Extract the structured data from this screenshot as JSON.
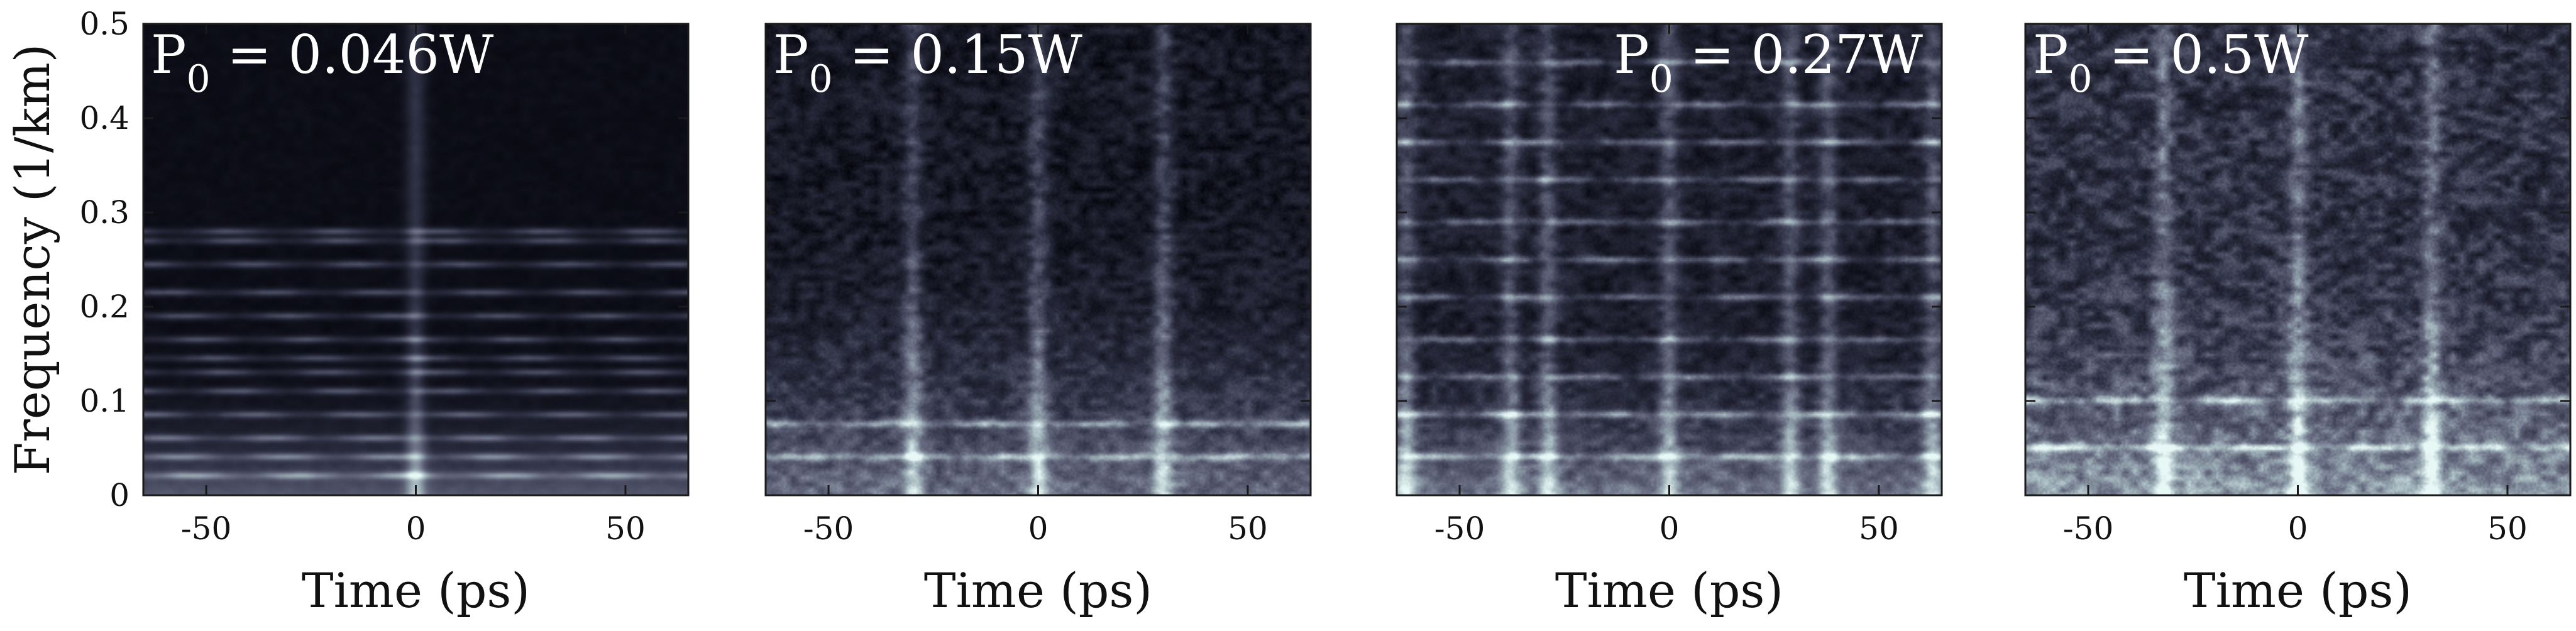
{
  "chart_data": [
    {
      "type": "heatmap",
      "annotation": {
        "main": "P",
        "sub": "0",
        "rest": " = 0.046W",
        "placement": "top-left"
      },
      "xlabel": "Time (ps)",
      "ylabel": "Frequency (1/km)",
      "xlim": [
        -65,
        65
      ],
      "ylim": [
        0,
        0.5
      ],
      "xticks": [
        "-50",
        "0",
        "50"
      ],
      "xtick_values": [
        -50,
        0,
        50
      ],
      "yticks": [
        "0",
        "0.1",
        "0.2",
        "0.3",
        "0.4",
        "0.5"
      ],
      "ytick_values": [
        0,
        0.1,
        0.2,
        0.3,
        0.4,
        0.5
      ],
      "pattern": {
        "bands": [
          0.02,
          0.04,
          0.06,
          0.085,
          0.11,
          0.13,
          0.145,
          0.165,
          0.19,
          0.215,
          0.245,
          0.27,
          0.28
        ],
        "stripes": [
          0
        ],
        "low_fill_top": 0.15,
        "noise": 0.04,
        "base": 0.06
      }
    },
    {
      "type": "heatmap",
      "annotation": {
        "main": "P",
        "sub": "0",
        "rest": " = 0.15W",
        "placement": "top-left"
      },
      "xlabel": "Time (ps)",
      "ylabel": "",
      "xlim": [
        -65,
        65
      ],
      "ylim": [
        0,
        0.5
      ],
      "xticks": [
        "-50",
        "0",
        "50"
      ],
      "xtick_values": [
        -50,
        0,
        50
      ],
      "yticks": [],
      "ytick_values": [
        0,
        0.1,
        0.2,
        0.3,
        0.4,
        0.5
      ],
      "pattern": {
        "bands": [
          0.04,
          0.075
        ],
        "stripes": [
          0,
          -30,
          30
        ],
        "low_fill_top": 0.32,
        "noise": 0.22,
        "base": 0.14
      }
    },
    {
      "type": "heatmap",
      "annotation": {
        "main": "P",
        "sub": "0",
        "rest": " = 0.27W",
        "placement": "top-right"
      },
      "xlabel": "Time (ps)",
      "ylabel": "",
      "xlim": [
        -65,
        65
      ],
      "ylim": [
        0,
        0.5
      ],
      "xticks": [
        "-50",
        "0",
        "50"
      ],
      "xtick_values": [
        -50,
        0,
        50
      ],
      "yticks": [],
      "ytick_values": [
        0,
        0.1,
        0.2,
        0.3,
        0.4,
        0.5
      ],
      "pattern": {
        "bands": [
          0.04,
          0.085,
          0.125,
          0.165,
          0.21,
          0.25,
          0.29,
          0.335,
          0.375,
          0.415,
          0.46
        ],
        "stripes": [
          -63,
          -38,
          -29,
          0,
          29,
          38,
          63
        ],
        "low_fill_top": 0.2,
        "noise": 0.2,
        "base": 0.18
      }
    },
    {
      "type": "heatmap",
      "annotation": {
        "main": "P",
        "sub": "0",
        "rest": " = 0.5W",
        "placement": "top-left"
      },
      "xlabel": "Time (ps)",
      "ylabel": "",
      "xlim": [
        -65,
        65
      ],
      "ylim": [
        0,
        0.5
      ],
      "xticks": [
        "-50",
        "0",
        "50"
      ],
      "xtick_values": [
        -50,
        0,
        50
      ],
      "yticks": [],
      "ytick_values": [
        0,
        0.1,
        0.2,
        0.3,
        0.4,
        0.5
      ],
      "pattern": {
        "bands": [
          0.05,
          0.1
        ],
        "stripes": [
          -32,
          0,
          32
        ],
        "low_fill_top": 0.3,
        "noise": 0.3,
        "base": 0.3
      }
    }
  ]
}
